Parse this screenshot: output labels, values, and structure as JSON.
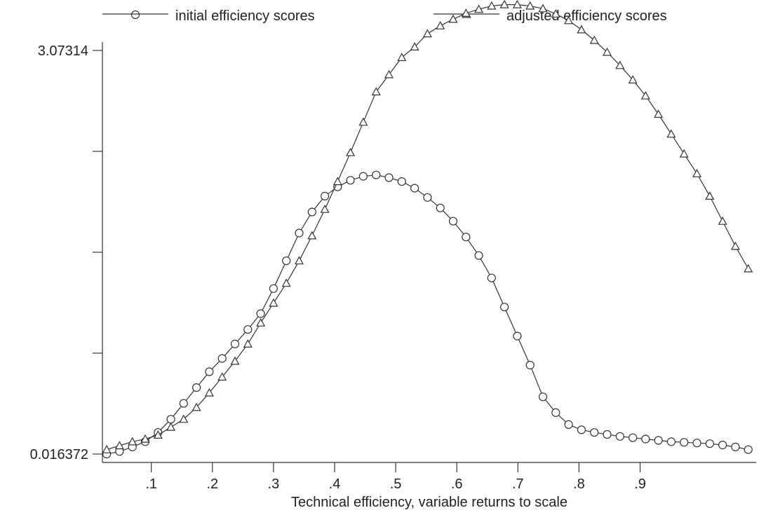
{
  "chart_data": {
    "type": "line",
    "title": "",
    "xlabel": "Technical efficiency, variable returns to scale",
    "ylabel": "",
    "xlim": [
      0.02,
      1.09
    ],
    "ylim": [
      0.016372,
      3.07314
    ],
    "x_ticks": [
      0.1,
      0.2,
      0.3,
      0.4,
      0.5,
      0.6,
      0.7,
      0.8,
      0.9
    ],
    "x_tick_labels": [
      ".1",
      ".2",
      ".3",
      ".4",
      ".5",
      ".6",
      ".7",
      ".8",
      ".9"
    ],
    "y_ticks": [
      0.016372,
      0.780564,
      1.544756,
      2.308948,
      3.07314
    ],
    "y_tick_labels": [
      "0.016372",
      "",
      "",
      "",
      "3.07314"
    ],
    "legend_position": "top",
    "grid": false,
    "series": [
      {
        "name": "initial efficiency scores",
        "marker": "circle",
        "x": [
          0.027,
          0.048,
          0.069,
          0.09,
          0.111,
          0.132,
          0.153,
          0.174,
          0.195,
          0.216,
          0.237,
          0.258,
          0.279,
          0.3,
          0.321,
          0.342,
          0.363,
          0.384,
          0.405,
          0.426,
          0.447,
          0.468,
          0.489,
          0.51,
          0.531,
          0.552,
          0.573,
          0.594,
          0.615,
          0.636,
          0.657,
          0.678,
          0.699,
          0.72,
          0.741,
          0.762,
          0.783,
          0.804,
          0.825,
          0.846,
          0.867,
          0.888,
          0.909,
          0.93,
          0.951,
          0.972,
          0.993,
          1.014,
          1.035,
          1.056,
          1.077
        ],
        "y": [
          0.016,
          0.036,
          0.07,
          0.11,
          0.18,
          0.28,
          0.4,
          0.52,
          0.64,
          0.74,
          0.85,
          0.96,
          1.08,
          1.27,
          1.48,
          1.69,
          1.85,
          1.97,
          2.04,
          2.09,
          2.12,
          2.13,
          2.11,
          2.08,
          2.03,
          1.96,
          1.88,
          1.78,
          1.66,
          1.52,
          1.35,
          1.13,
          0.91,
          0.69,
          0.45,
          0.33,
          0.24,
          0.2,
          0.18,
          0.165,
          0.15,
          0.14,
          0.13,
          0.12,
          0.11,
          0.105,
          0.1,
          0.095,
          0.085,
          0.07,
          0.05
        ]
      },
      {
        "name": "adjusted efficiency scores",
        "marker": "triangle",
        "x": [
          0.027,
          0.048,
          0.069,
          0.09,
          0.111,
          0.132,
          0.153,
          0.174,
          0.195,
          0.216,
          0.237,
          0.258,
          0.279,
          0.3,
          0.321,
          0.342,
          0.363,
          0.384,
          0.405,
          0.426,
          0.447,
          0.468,
          0.489,
          0.51,
          0.531,
          0.552,
          0.573,
          0.594,
          0.615,
          0.636,
          0.657,
          0.678,
          0.699,
          0.72,
          0.741,
          0.762,
          0.783,
          0.804,
          0.825,
          0.846,
          0.867,
          0.888,
          0.909,
          0.93,
          0.951,
          0.972,
          0.993,
          1.014,
          1.035,
          1.056,
          1.077
        ],
        "y": [
          0.05,
          0.08,
          0.11,
          0.13,
          0.16,
          0.22,
          0.28,
          0.37,
          0.48,
          0.6,
          0.72,
          0.85,
          1.01,
          1.16,
          1.31,
          1.48,
          1.67,
          1.87,
          2.08,
          2.3,
          2.53,
          2.76,
          2.89,
          3.02,
          3.1,
          3.2,
          3.26,
          3.31,
          3.355,
          3.385,
          3.41,
          3.42,
          3.42,
          3.41,
          3.39,
          3.35,
          3.3,
          3.23,
          3.15,
          3.06,
          2.96,
          2.85,
          2.73,
          2.59,
          2.44,
          2.29,
          2.14,
          1.97,
          1.78,
          1.59,
          1.42
        ]
      }
    ]
  }
}
